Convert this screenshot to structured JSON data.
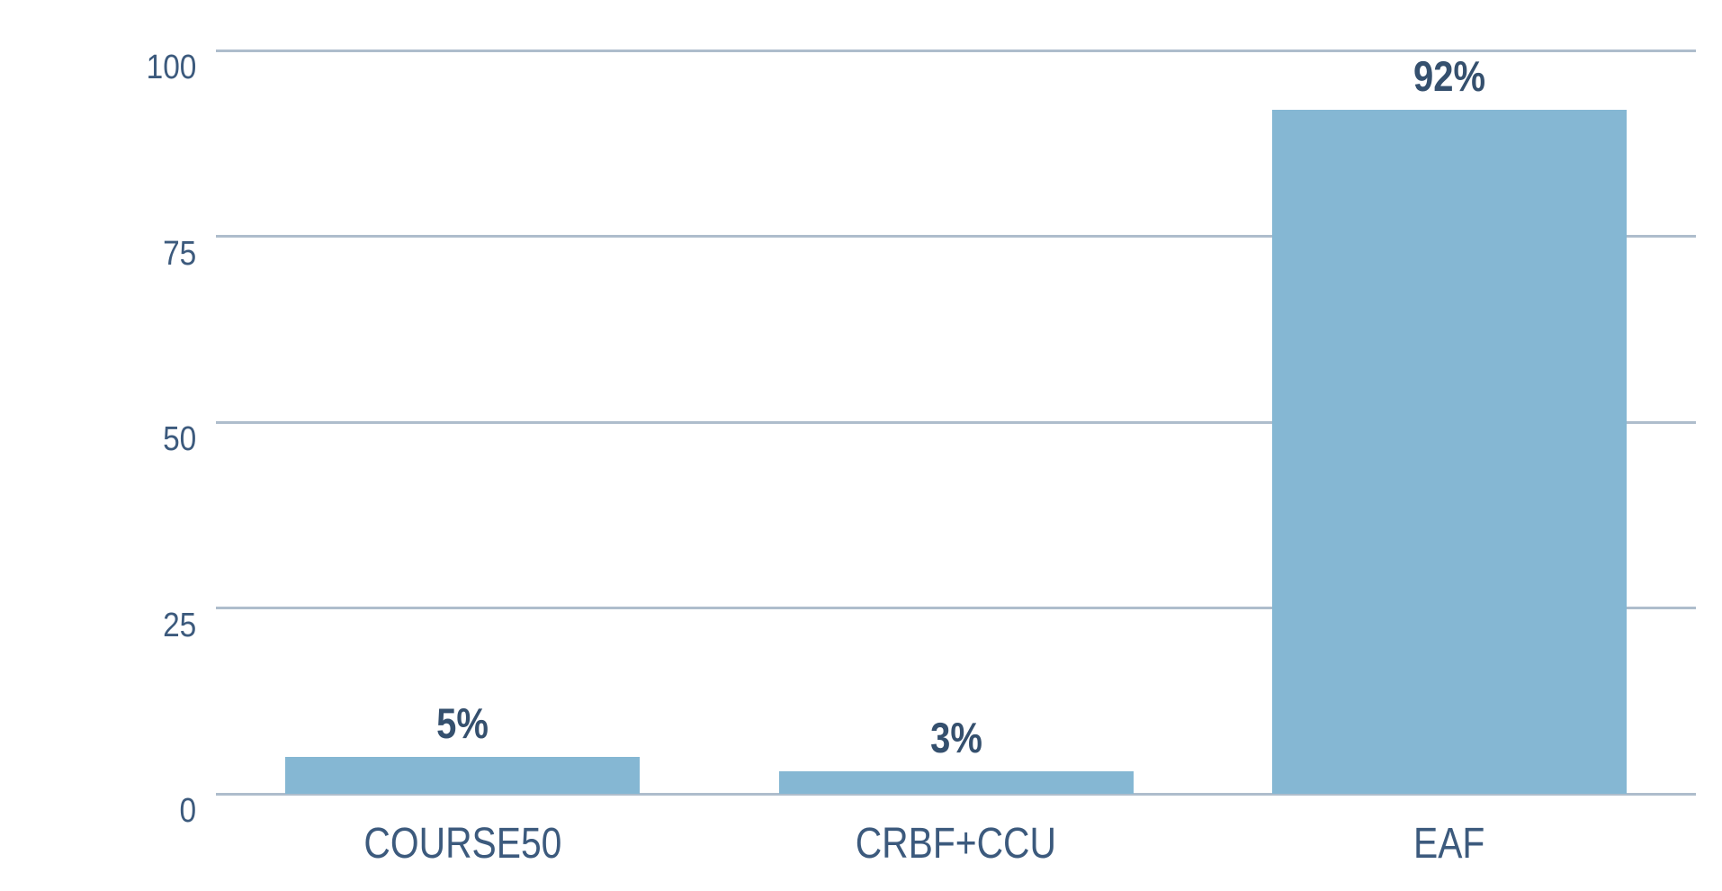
{
  "chart_data": {
    "type": "bar",
    "categories": [
      "COURSE50",
      "CRBF+CCU",
      "EAF"
    ],
    "values": [
      5,
      3,
      92
    ],
    "data_labels": [
      "5%",
      "3%",
      "92%"
    ],
    "title": "",
    "xlabel": "",
    "ylabel": "",
    "ylim": [
      0,
      100
    ],
    "yticks": [
      0,
      25,
      50,
      75,
      100
    ],
    "grid": true,
    "legend_position": "none",
    "colors": {
      "bar": "#85B7D3",
      "gridline": "#AEBDCC",
      "axis_text": "#3C5A7D",
      "data_label": "#35506E",
      "background": "#FFFFFF"
    }
  }
}
